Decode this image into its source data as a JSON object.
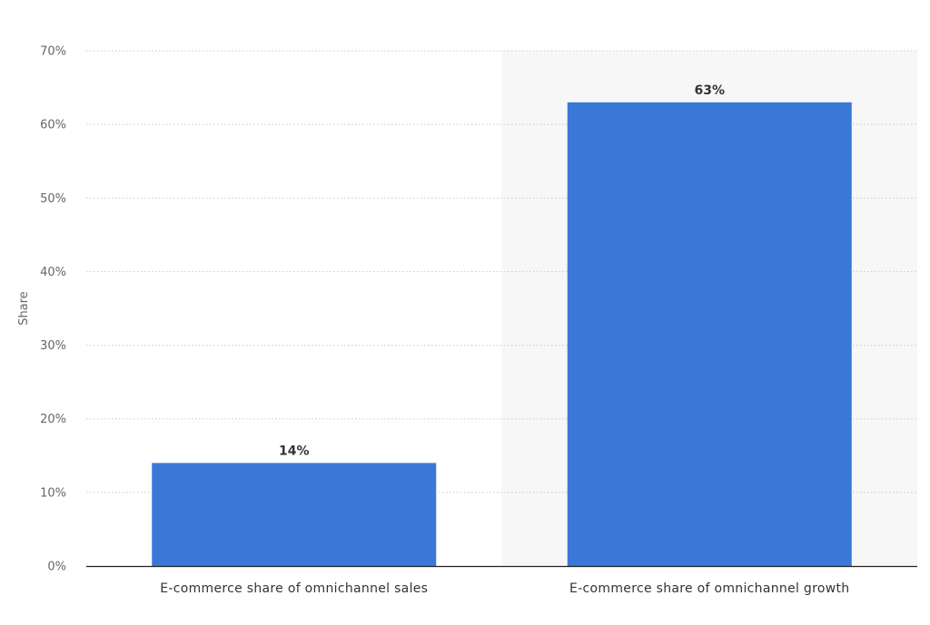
{
  "chart_data": {
    "type": "bar",
    "categories": [
      "E-commerce share of omnichannel sales",
      "E-commerce share of omnichannel growth"
    ],
    "values": [
      14,
      63
    ],
    "data_labels": [
      "14%",
      "63%"
    ],
    "title": "",
    "xlabel": "",
    "ylabel": "Share",
    "ylim": [
      0,
      70
    ],
    "yticks": [
      0,
      10,
      20,
      30,
      40,
      50,
      60,
      70
    ],
    "ytick_labels": [
      "0%",
      "10%",
      "20%",
      "30%",
      "40%",
      "50%",
      "60%",
      "70%"
    ],
    "grid": true,
    "highlighted_category": 1,
    "colors": {
      "bar": "#3a78d8",
      "highlight_band": "#f7f7f7",
      "grid": "#c8c8c8",
      "baseline": "#222222"
    }
  }
}
